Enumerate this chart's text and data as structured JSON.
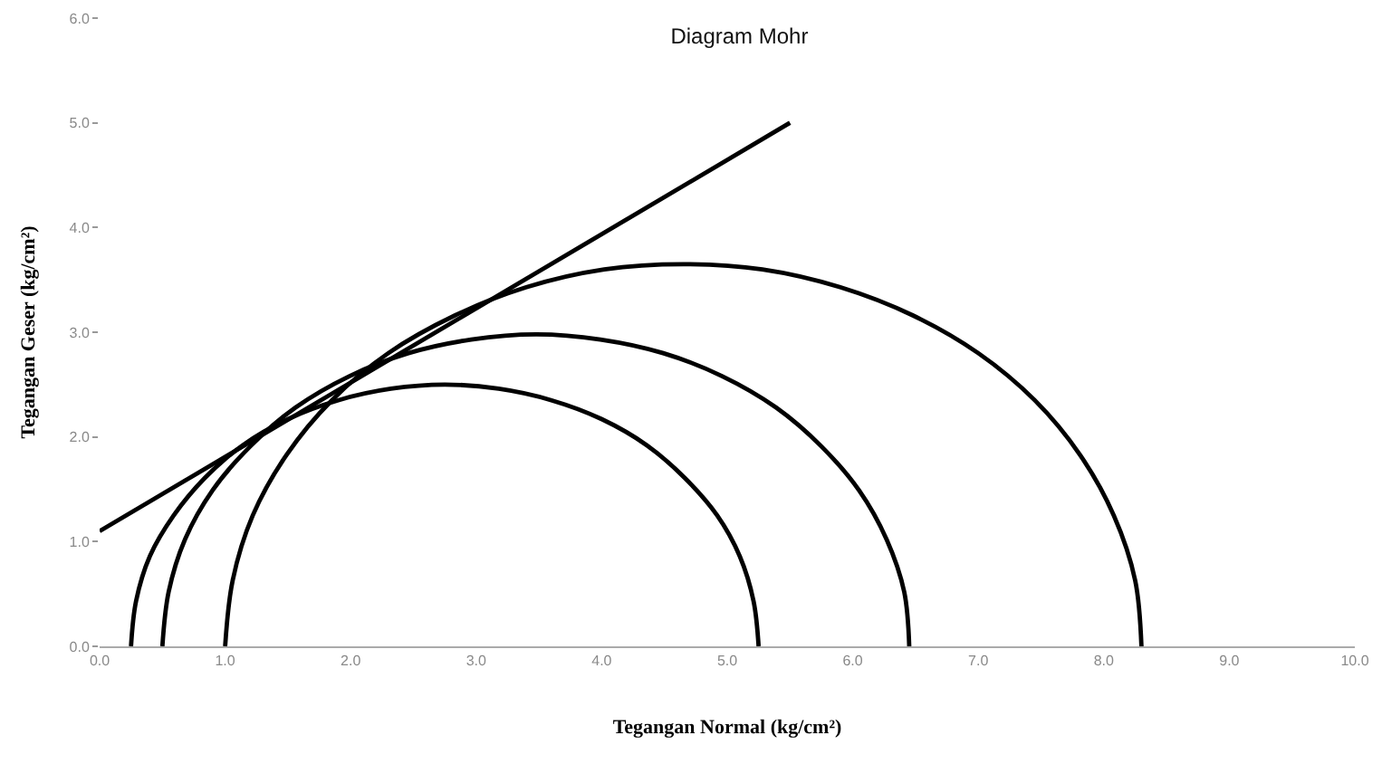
{
  "chart_data": {
    "type": "line",
    "title": "Diagram Mohr",
    "xlabel": "Tegangan Normal (kg/cm²)",
    "ylabel": "Tegangan Geser (kg/cm²)",
    "xlim": [
      0,
      10
    ],
    "ylim": [
      0,
      6
    ],
    "xticks": [
      {
        "value": 0,
        "label": "0.0"
      },
      {
        "value": 1,
        "label": "1.0"
      },
      {
        "value": 2,
        "label": "2.0"
      },
      {
        "value": 3,
        "label": "3.0"
      },
      {
        "value": 4,
        "label": "4.0"
      },
      {
        "value": 5,
        "label": "5.0"
      },
      {
        "value": 6,
        "label": "6.0"
      },
      {
        "value": 7,
        "label": "7.0"
      },
      {
        "value": 8,
        "label": "8.0"
      },
      {
        "value": 9,
        "label": "9.0"
      },
      {
        "value": 10,
        "label": "10.0"
      }
    ],
    "yticks": [
      {
        "value": 0,
        "label": "0.0"
      },
      {
        "value": 1,
        "label": "1.0"
      },
      {
        "value": 2,
        "label": "2.0"
      },
      {
        "value": 3,
        "label": "3.0"
      },
      {
        "value": 4,
        "label": "4.0"
      },
      {
        "value": 5,
        "label": "5.0"
      },
      {
        "value": 6,
        "label": "6.0"
      }
    ],
    "grid": false,
    "legend": false,
    "marker": "none",
    "line_style": "solid",
    "series": [
      {
        "color": "#000000",
        "x": [
          0.0,
          5.5
        ],
        "values": [
          1.1,
          5.0
        ]
      },
      {
        "color": "#000000",
        "x": [
          0.25,
          0.29,
          0.4,
          0.59,
          0.84,
          1.14,
          1.5,
          1.9,
          2.32,
          2.75,
          3.18,
          3.6,
          4.0,
          4.36,
          4.66,
          4.92,
          5.1,
          5.21,
          5.25
        ],
        "values": [
          0,
          0.43,
          0.86,
          1.25,
          1.61,
          1.92,
          2.17,
          2.35,
          2.46,
          2.5,
          2.46,
          2.35,
          2.17,
          1.92,
          1.61,
          1.25,
          0.86,
          0.43,
          0
        ]
      },
      {
        "color": "#000000",
        "x": [
          0.5,
          0.55,
          0.68,
          0.9,
          1.2,
          1.56,
          1.99,
          2.46,
          2.96,
          3.48,
          3.99,
          4.49,
          4.96,
          5.39,
          5.75,
          6.05,
          6.27,
          6.41,
          6.45
        ],
        "values": [
          0,
          0.52,
          1.02,
          1.49,
          1.91,
          2.28,
          2.58,
          2.8,
          2.93,
          2.98,
          2.93,
          2.8,
          2.58,
          2.28,
          1.91,
          1.49,
          1.02,
          0.52,
          0
        ]
      },
      {
        "color": "#000000",
        "x": [
          1.0,
          1.06,
          1.22,
          1.49,
          1.85,
          2.3,
          2.83,
          3.4,
          4.02,
          4.65,
          5.28,
          5.9,
          6.48,
          7.0,
          7.45,
          7.81,
          8.08,
          8.25,
          8.3
        ],
        "values": [
          0,
          0.63,
          1.25,
          1.83,
          2.35,
          2.8,
          3.16,
          3.43,
          3.6,
          3.65,
          3.6,
          3.43,
          3.16,
          2.8,
          2.35,
          1.83,
          1.25,
          0.63,
          0
        ]
      }
    ]
  }
}
